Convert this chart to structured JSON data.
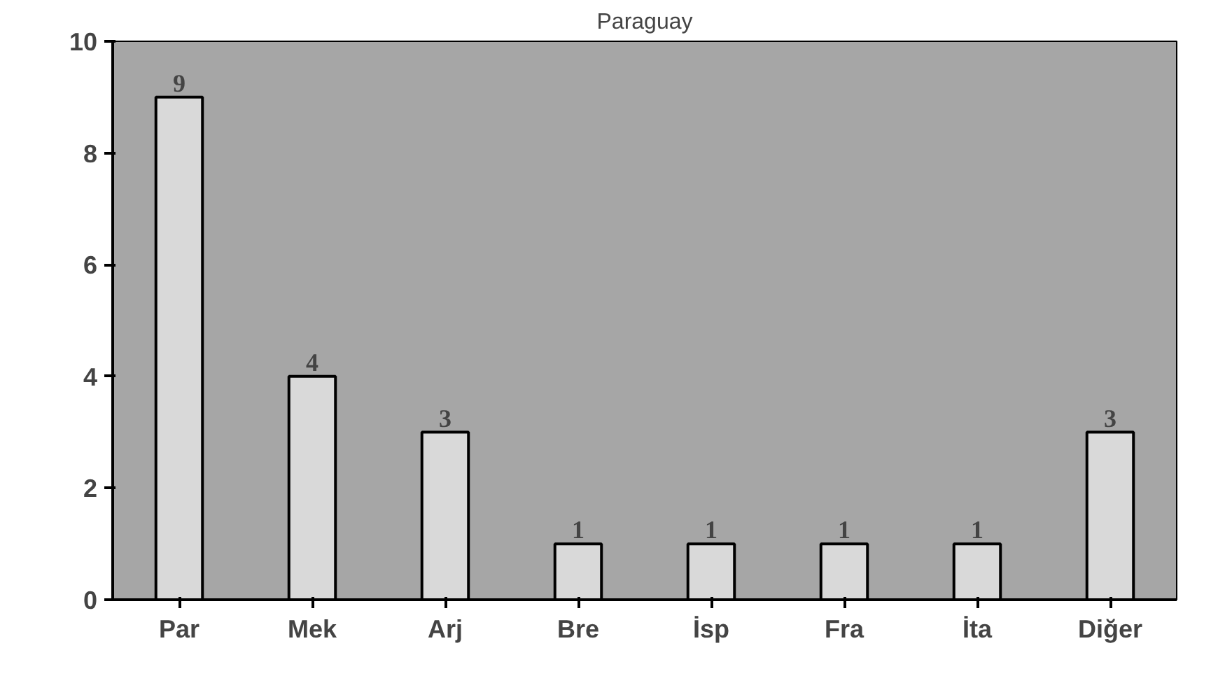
{
  "chart_data": {
    "type": "bar",
    "title": "Paraguay",
    "categories": [
      "Par",
      "Mek",
      "Arj",
      "Bre",
      "İsp",
      "Fra",
      "İta",
      "Diğer"
    ],
    "values": [
      9,
      4,
      3,
      1,
      1,
      1,
      1,
      3
    ],
    "color": "#d9d9d9",
    "ylim": [
      0,
      10
    ],
    "yticks": [
      0,
      2,
      4,
      6,
      8,
      10
    ],
    "grid": false,
    "data_labels": true
  }
}
